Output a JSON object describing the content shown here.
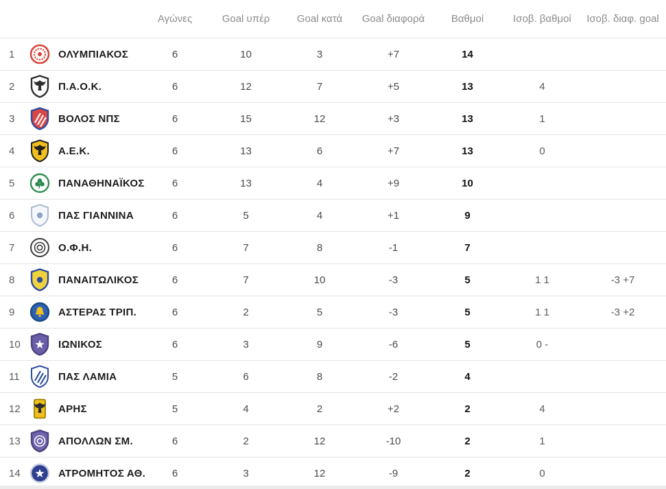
{
  "table": {
    "columns": [
      "Αγώνες",
      "Goal υπέρ",
      "Goal κατά",
      "Goal διαφορά",
      "Βαθμοί",
      "Ισοβ. βαθμοί",
      "Ισοβ. διαφ. goal"
    ],
    "rows": [
      {
        "rank": "1",
        "team": "ΟΛΥΜΠΙΑΚΟΣ",
        "games": "6",
        "goals_for": "10",
        "goals_against": "3",
        "goal_diff": "+7",
        "points": "14",
        "tiebreak_points": "",
        "tiebreak_goal_diff": "",
        "logo": {
          "name": "olympiakos-logo",
          "shape": "circle",
          "bg": "#ffffff",
          "border": "#d5453c",
          "border_width": 2.6,
          "emblem": "wreath",
          "emblem_color": "#d5453c"
        }
      },
      {
        "rank": "2",
        "team": "Π.Α.Ο.Κ.",
        "games": "6",
        "goals_for": "12",
        "goals_against": "7",
        "goal_diff": "+5",
        "points": "13",
        "tiebreak_points": "4",
        "tiebreak_goal_diff": "",
        "logo": {
          "name": "paok-logo",
          "shape": "shield",
          "bg": "#ffffff",
          "border": "#2e2e2e",
          "border_width": 2.4,
          "emblem": "eagle",
          "emblem_color": "#2e2e2e"
        }
      },
      {
        "rank": "3",
        "team": "ΒΟΛΟΣ ΝΠΣ",
        "games": "6",
        "goals_for": "15",
        "goals_against": "12",
        "goal_diff": "+3",
        "points": "13",
        "tiebreak_points": "1",
        "tiebreak_goal_diff": "",
        "logo": {
          "name": "volos-logo",
          "shape": "shield",
          "bg": "#d94646",
          "border": "#2d4c9e",
          "border_width": 2.4,
          "emblem": "stripes",
          "emblem_color": "#ffffff"
        }
      },
      {
        "rank": "4",
        "team": "Α.Ε.Κ.",
        "games": "6",
        "goals_for": "13",
        "goals_against": "6",
        "goal_diff": "+7",
        "points": "13",
        "tiebreak_points": "0",
        "tiebreak_goal_diff": "",
        "logo": {
          "name": "aek-logo",
          "shape": "shield",
          "bg": "#f2c01e",
          "border": "#1f1f1f",
          "border_width": 2,
          "emblem": "eagle",
          "emblem_color": "#1f1f1f"
        }
      },
      {
        "rank": "5",
        "team": "ΠΑΝΑΘΗΝΑΪΚΟΣ",
        "games": "6",
        "goals_for": "13",
        "goals_against": "4",
        "goal_diff": "+9",
        "points": "10",
        "tiebreak_points": "",
        "tiebreak_goal_diff": "",
        "logo": {
          "name": "panathinaikos-logo",
          "shape": "circle",
          "bg": "#ffffff",
          "border": "#2e8b4f",
          "border_width": 2.4,
          "emblem": "clover",
          "emblem_color": "#2e8b4f"
        }
      },
      {
        "rank": "6",
        "team": "ΠΑΣ ΓΙΑΝΝΙΝΑ",
        "games": "6",
        "goals_for": "5",
        "goals_against": "4",
        "goal_diff": "+1",
        "points": "9",
        "tiebreak_points": "",
        "tiebreak_goal_diff": "",
        "logo": {
          "name": "pas-giannina-logo",
          "shape": "shield",
          "bg": "#f4f7fc",
          "border": "#aebad2",
          "border_width": 2,
          "emblem": "dot",
          "emblem_color": "#8fa3c8"
        }
      },
      {
        "rank": "7",
        "team": "Ο.Φ.Η.",
        "games": "6",
        "goals_for": "7",
        "goals_against": "8",
        "goal_diff": "-1",
        "points": "7",
        "tiebreak_points": "",
        "tiebreak_goal_diff": "",
        "logo": {
          "name": "ofi-logo",
          "shape": "circle",
          "bg": "#ffffff",
          "border": "#3a3a3a",
          "border_width": 2,
          "emblem": "rings",
          "emblem_color": "#3a3a3a"
        }
      },
      {
        "rank": "8",
        "team": "ΠΑΝΑΙΤΩΛΙΚΟΣ",
        "games": "6",
        "goals_for": "7",
        "goals_against": "10",
        "goal_diff": "-3",
        "points": "5",
        "tiebreak_points": "1 1",
        "tiebreak_goal_diff": "-3 +7",
        "logo": {
          "name": "panaitolikos-logo",
          "shape": "shield",
          "bg": "#f0d23c",
          "border": "#2d4c9e",
          "border_width": 2.4,
          "emblem": "dot",
          "emblem_color": "#2d4c9e"
        }
      },
      {
        "rank": "9",
        "team": "ΑΣΤΕΡΑΣ ΤΡΙΠ.",
        "games": "6",
        "goals_for": "2",
        "goals_against": "5",
        "goal_diff": "-3",
        "points": "5",
        "tiebreak_points": "1 1",
        "tiebreak_goal_diff": "-3 +2",
        "logo": {
          "name": "asteras-tripolis-logo",
          "shape": "circle",
          "bg": "#2b62b5",
          "border": "#1d4684",
          "border_width": 2.4,
          "emblem": "bell",
          "emblem_color": "#f2c01e"
        }
      },
      {
        "rank": "10",
        "team": "ΙΩΝΙΚΟΣ",
        "games": "6",
        "goals_for": "3",
        "goals_against": "9",
        "goal_diff": "-6",
        "points": "5",
        "tiebreak_points": "0 -",
        "tiebreak_goal_diff": "",
        "logo": {
          "name": "ionikos-logo",
          "shape": "shield",
          "bg": "#6a5fa8",
          "border": "#4a4380",
          "border_width": 2.4,
          "emblem": "star",
          "emblem_color": "#ffffff"
        }
      },
      {
        "rank": "11",
        "team": "ΠΑΣ ΛΑΜΙΑ",
        "games": "5",
        "goals_for": "6",
        "goals_against": "8",
        "goal_diff": "-2",
        "points": "4",
        "tiebreak_points": "",
        "tiebreak_goal_diff": "",
        "logo": {
          "name": "pas-lamia-logo",
          "shape": "shield",
          "bg": "#ffffff",
          "border": "#2d4c9e",
          "border_width": 2,
          "emblem": "stripes",
          "emblem_color": "#2d4c9e"
        }
      },
      {
        "rank": "12",
        "team": "ΑΡΗΣ",
        "games": "5",
        "goals_for": "4",
        "goals_against": "2",
        "goal_diff": "+2",
        "points": "2",
        "tiebreak_points": "4",
        "tiebreak_goal_diff": "",
        "logo": {
          "name": "aris-logo",
          "shape": "rect",
          "bg": "#f2c01e",
          "border": "#9a7d00",
          "border_width": 1.8,
          "emblem": "eagle",
          "emblem_color": "#2e2e2e"
        }
      },
      {
        "rank": "13",
        "team": "ΑΠΟΛΛΩΝ ΣΜ.",
        "games": "6",
        "goals_for": "2",
        "goals_against": "12",
        "goal_diff": "-10",
        "points": "2",
        "tiebreak_points": "1",
        "tiebreak_goal_diff": "",
        "logo": {
          "name": "apollon-smyrnis-logo",
          "shape": "shield",
          "bg": "#7064ad",
          "border": "#4a4380",
          "border_width": 2.4,
          "emblem": "rings",
          "emblem_color": "#ffffff"
        }
      },
      {
        "rank": "14",
        "team": "ΑΤΡΟΜΗΤΟΣ ΑΘ.",
        "games": "6",
        "goals_for": "3",
        "goals_against": "12",
        "goal_diff": "-9",
        "points": "2",
        "tiebreak_points": "0",
        "tiebreak_goal_diff": "",
        "logo": {
          "name": "atromitos-logo",
          "shape": "circle",
          "bg": "#2e3f8f",
          "border": "#c8cde0",
          "border_width": 2.4,
          "emblem": "star",
          "emblem_color": "#ffffff"
        }
      }
    ]
  },
  "colors": {
    "row_separator": "#e4e4e4",
    "header_text": "#8b8b8b",
    "team_text": "#1c1c1c",
    "value_text": "#4a4a4a",
    "points_text": "#111111",
    "bottom_strip": "#ebebeb"
  }
}
